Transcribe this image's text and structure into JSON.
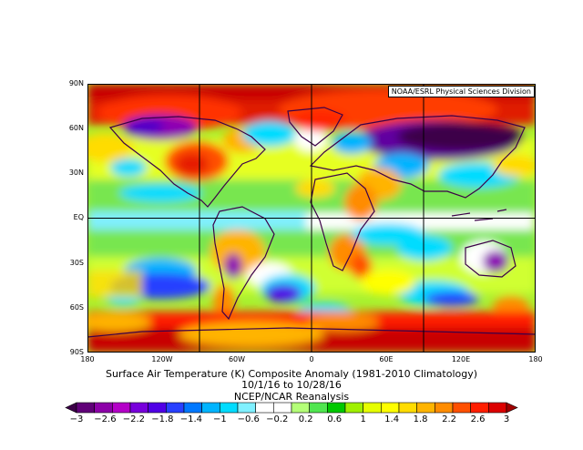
{
  "map": {
    "attribution": "NOAA/ESRL Physical Sciences Division",
    "lat_labels": [
      "90N",
      "60N",
      "30N",
      "EQ",
      "30S",
      "60S",
      "90S"
    ],
    "lon_labels": [
      "180",
      "120W",
      "60W",
      "0",
      "60E",
      "120E",
      "180"
    ],
    "grid_lines": [
      "90W",
      "0",
      "90E",
      "EQ"
    ]
  },
  "caption": {
    "line1": "Surface Air Temperature (K) Composite Anomaly (1981-2010 Climatology)",
    "line2": "10/1/16  to 10/28/16",
    "line3": "NCEP/NCAR Reanalysis"
  },
  "colorbar": {
    "ticks": [
      "−3",
      "−2.6",
      "−2.2",
      "−1.8",
      "−1.4",
      "−1",
      "−0.6",
      "−0.2",
      "0.2",
      "0.6",
      "1",
      "1.4",
      "1.8",
      "2.2",
      "2.6",
      "3"
    ],
    "colors": [
      "#3c0048",
      "#600078",
      "#8c00a8",
      "#b400c8",
      "#7800dc",
      "#5000e6",
      "#2840ff",
      "#0078ff",
      "#00b4ff",
      "#00dcff",
      "#80f0ff",
      "#ffffff",
      "#ffffff",
      "#b4ff78",
      "#50e650",
      "#00c800",
      "#a0f000",
      "#e6ff00",
      "#ffff00",
      "#ffdc00",
      "#ffb400",
      "#ff8c00",
      "#ff5000",
      "#ff1e00",
      "#dc0000",
      "#a00000"
    ]
  }
}
